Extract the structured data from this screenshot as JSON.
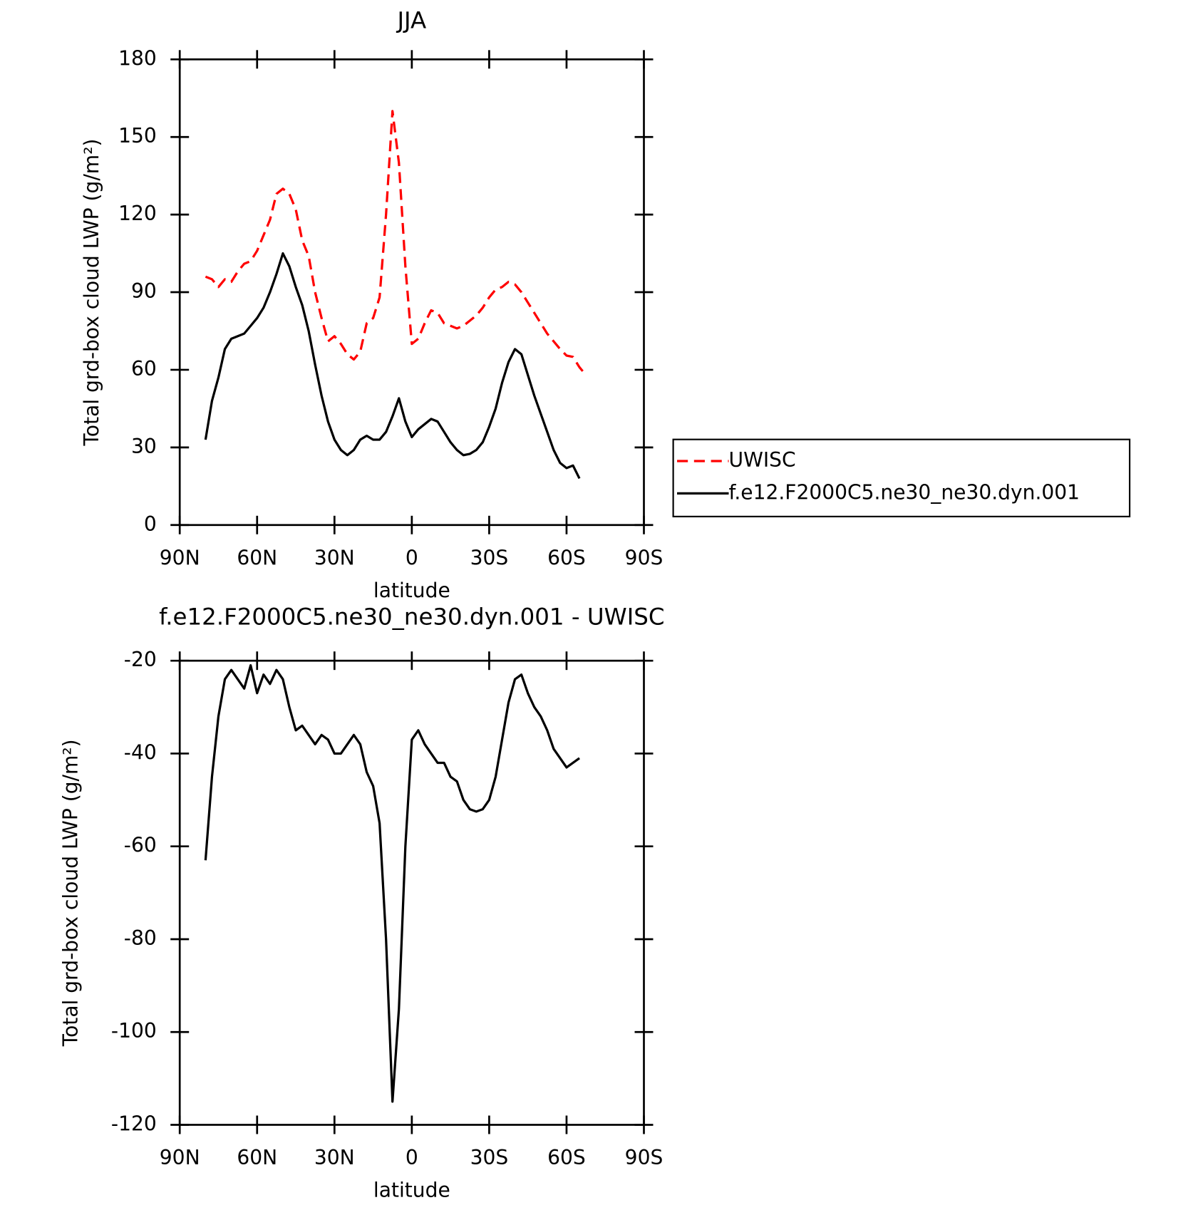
{
  "chart_data": [
    {
      "type": "line",
      "title": "JJA",
      "x_label": "latitude",
      "y_label": "Total grd-box cloud LWP (g/m²)",
      "x": [
        80,
        77.5,
        75,
        72.5,
        70,
        67.5,
        65,
        62.5,
        60,
        57.5,
        55,
        52.5,
        50,
        47.5,
        45,
        42.5,
        40,
        37.5,
        35,
        32.5,
        30,
        27.5,
        25,
        22.5,
        20,
        17.5,
        15,
        12.5,
        10,
        7.5,
        5,
        2.5,
        0,
        -2.5,
        -5,
        -7.5,
        -10,
        -12.5,
        -15,
        -17.5,
        -20,
        -22.5,
        -25,
        -27.5,
        -30,
        -32.5,
        -35,
        -37.5,
        -40,
        -42.5,
        -45,
        -47.5,
        -50,
        -52.5,
        -55,
        -57.5,
        -60,
        -62.5,
        -65,
        -67.5
      ],
      "series": [
        {
          "name": "UWISC",
          "color": "#ff0000",
          "line_style": "dashed",
          "values": [
            96,
            95,
            92,
            95,
            94,
            98,
            101,
            102,
            106,
            112,
            118,
            128,
            130,
            128,
            122,
            110,
            104,
            90,
            80,
            71,
            73,
            70,
            66,
            64,
            67,
            78,
            80,
            88,
            120,
            160,
            140,
            100,
            70,
            72,
            78,
            83,
            82,
            78,
            77,
            76,
            77,
            79,
            81,
            84,
            88,
            91,
            92,
            94,
            93,
            90,
            86,
            82,
            78,
            74,
            71,
            68,
            65.5,
            65,
            61,
            58
          ]
        },
        {
          "name": "f.e12.F2000C5.ne30_ne30.dyn.001",
          "color": "#000000",
          "line_style": "solid",
          "values": [
            33,
            48,
            57,
            68,
            72,
            73,
            74,
            77,
            80,
            84,
            90,
            97,
            105,
            100,
            92,
            85,
            75,
            62,
            50,
            40,
            33,
            29,
            27,
            29,
            33,
            34.5,
            33,
            33,
            36,
            42,
            49,
            40,
            34,
            37,
            39,
            41,
            40,
            36,
            32,
            29,
            27,
            27.5,
            29,
            32,
            38,
            45,
            55,
            63,
            68,
            66,
            58,
            50,
            43,
            36,
            29,
            24,
            22,
            23,
            18,
            null
          ]
        }
      ],
      "xlim": [
        90,
        -90
      ],
      "xticks": [
        {
          "value": 90,
          "label": "90N"
        },
        {
          "value": 60,
          "label": "60N"
        },
        {
          "value": 30,
          "label": "30N"
        },
        0,
        {
          "value": -30,
          "label": "30S"
        },
        {
          "value": -60,
          "label": "60S"
        },
        {
          "value": -90,
          "label": "90S"
        }
      ],
      "ylim": [
        0,
        180
      ],
      "yticks": [
        0,
        30,
        60,
        90,
        120,
        150,
        180
      ],
      "legend": "right"
    },
    {
      "type": "line",
      "title": "f.e12.F2000C5.ne30_ne30.dyn.001 - UWISC",
      "x_label": "latitude",
      "y_label": "Total grd-box cloud LWP (g/m²)",
      "x": [
        80,
        77.5,
        75,
        72.5,
        70,
        67.5,
        65,
        62.5,
        60,
        57.5,
        55,
        52.5,
        50,
        47.5,
        45,
        42.5,
        40,
        37.5,
        35,
        32.5,
        30,
        27.5,
        25,
        22.5,
        20,
        17.5,
        15,
        12.5,
        10,
        7.5,
        5,
        2.5,
        0,
        -2.5,
        -5,
        -7.5,
        -10,
        -12.5,
        -15,
        -17.5,
        -20,
        -22.5,
        -25,
        -27.5,
        -30,
        -32.5,
        -35,
        -37.5,
        -40,
        -42.5,
        -45,
        -47.5,
        -50,
        -52.5,
        -55,
        -57.5,
        -60,
        -62.5,
        -65
      ],
      "series": [
        {
          "color": "#000000",
          "line_style": "solid",
          "values": [
            -63,
            -45,
            -32,
            -24,
            -22,
            -24,
            -26,
            -21,
            -27,
            -23,
            -25,
            -22,
            -24,
            -30,
            -35,
            -34,
            -36,
            -38,
            -36,
            -37,
            -40,
            -40,
            -38,
            -36,
            -38,
            -44,
            -47,
            -55,
            -80,
            -115,
            -95,
            -60,
            -37,
            -35,
            -38,
            -40,
            -42,
            -42,
            -45,
            -46,
            -50,
            -52,
            -52.5,
            -52,
            -50,
            -45,
            -37,
            -29,
            -24,
            -23,
            -27,
            -30,
            -32,
            -35,
            -39,
            -41,
            -43,
            -42,
            -41
          ]
        }
      ],
      "xlim": [
        90,
        -90
      ],
      "xticks": [
        {
          "value": 90,
          "label": "90N"
        },
        {
          "value": 60,
          "label": "60N"
        },
        {
          "value": 30,
          "label": "30N"
        },
        0,
        {
          "value": -30,
          "label": "30S"
        },
        {
          "value": -60,
          "label": "60S"
        },
        {
          "value": -90,
          "label": "90S"
        }
      ],
      "ylim": [
        -120,
        -20
      ],
      "yticks": [
        -120,
        -100,
        -80,
        -60,
        -40,
        -20
      ]
    }
  ]
}
